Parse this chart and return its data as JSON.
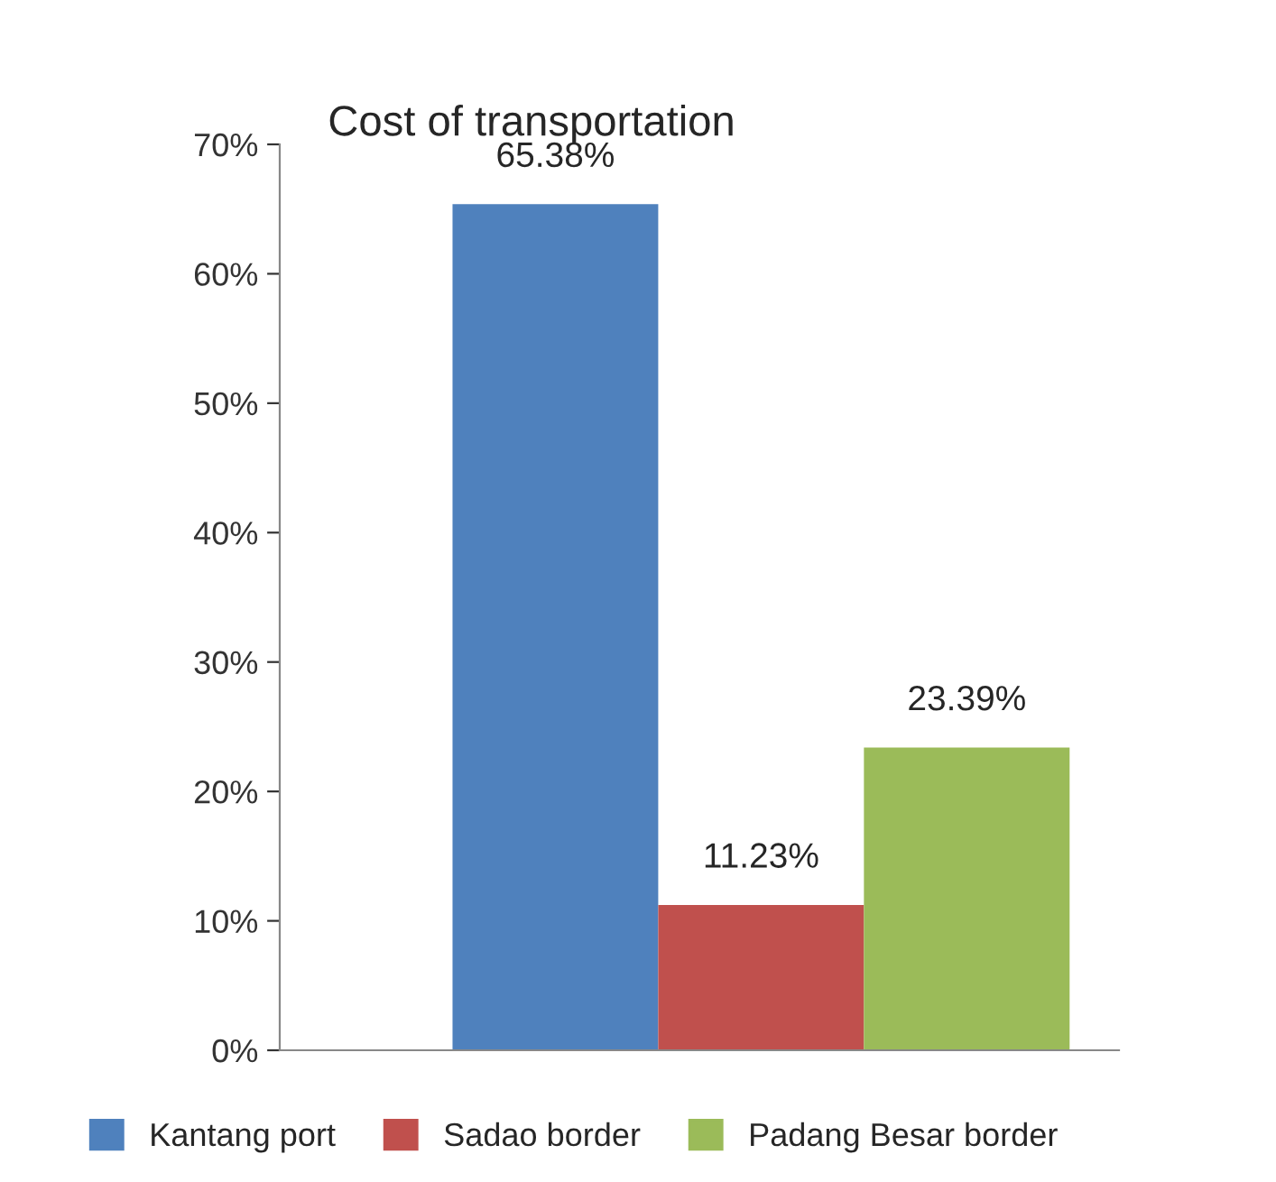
{
  "chart_data": {
    "type": "bar",
    "title": "Cost of transportation",
    "categories": [
      null
    ],
    "series": [
      {
        "name": "Kantang port",
        "color": "#4f81bd",
        "values": [
          65.38
        ],
        "value_labels": [
          "65.38%"
        ]
      },
      {
        "name": "Sadao border",
        "color": "#c0504d",
        "values": [
          11.23
        ],
        "value_labels": [
          "11.23%"
        ]
      },
      {
        "name": "Padang Besar border",
        "color": "#9bbb59",
        "values": [
          23.39
        ],
        "value_labels": [
          "23.39%"
        ]
      }
    ],
    "ylim": [
      0,
      70
    ],
    "yticks": [
      {
        "value": 0,
        "label": "0%"
      },
      {
        "value": 10,
        "label": "10%"
      },
      {
        "value": 20,
        "label": "20%"
      },
      {
        "value": 30,
        "label": "30%"
      },
      {
        "value": 40,
        "label": "40%"
      },
      {
        "value": 50,
        "label": "50%"
      },
      {
        "value": 60,
        "label": "60%"
      },
      {
        "value": 70,
        "label": "70%"
      }
    ],
    "grid": false,
    "legend": "bottom"
  }
}
